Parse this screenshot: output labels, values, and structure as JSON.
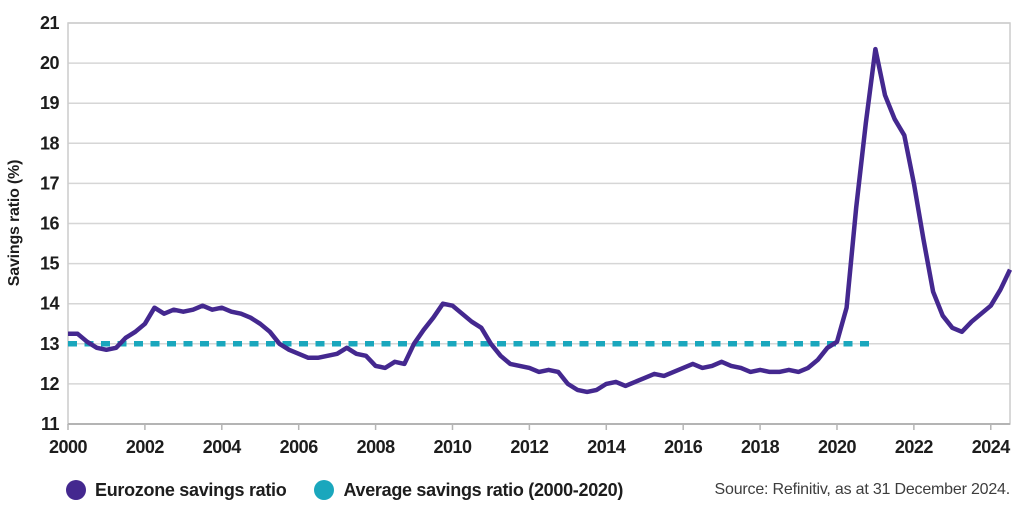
{
  "chart_data": {
    "type": "line",
    "title": "",
    "xlabel": "",
    "ylabel": "Savings ratio (%)",
    "ylim": [
      11,
      21
    ],
    "xlim": [
      2000,
      2024.5
    ],
    "y_ticks": [
      11,
      12,
      13,
      14,
      15,
      16,
      17,
      18,
      19,
      20,
      21
    ],
    "x_ticks": [
      2000,
      2002,
      2004,
      2006,
      2008,
      2010,
      2012,
      2014,
      2016,
      2018,
      2020,
      2022,
      2024
    ],
    "grid": "horizontal",
    "legend_position": "bottom-left",
    "series": [
      {
        "name": "Eurozone savings ratio",
        "color": "#44288f",
        "style": "solid",
        "x": [
          2000.0,
          2000.25,
          2000.5,
          2000.75,
          2001.0,
          2001.25,
          2001.5,
          2001.75,
          2002.0,
          2002.25,
          2002.5,
          2002.75,
          2003.0,
          2003.25,
          2003.5,
          2003.75,
          2004.0,
          2004.25,
          2004.5,
          2004.75,
          2005.0,
          2005.25,
          2005.5,
          2005.75,
          2006.0,
          2006.25,
          2006.5,
          2006.75,
          2007.0,
          2007.25,
          2007.5,
          2007.75,
          2008.0,
          2008.25,
          2008.5,
          2008.75,
          2009.0,
          2009.25,
          2009.5,
          2009.75,
          2010.0,
          2010.25,
          2010.5,
          2010.75,
          2011.0,
          2011.25,
          2011.5,
          2011.75,
          2012.0,
          2012.25,
          2012.5,
          2012.75,
          2013.0,
          2013.25,
          2013.5,
          2013.75,
          2014.0,
          2014.25,
          2014.5,
          2014.75,
          2015.0,
          2015.25,
          2015.5,
          2015.75,
          2016.0,
          2016.25,
          2016.5,
          2016.75,
          2017.0,
          2017.25,
          2017.5,
          2017.75,
          2018.0,
          2018.25,
          2018.5,
          2018.75,
          2019.0,
          2019.25,
          2019.5,
          2019.75,
          2020.0,
          2020.25,
          2020.5,
          2020.75,
          2021.0,
          2021.25,
          2021.5,
          2021.75,
          2022.0,
          2022.25,
          2022.5,
          2022.75,
          2023.0,
          2023.25,
          2023.5,
          2023.75,
          2024.0,
          2024.25,
          2024.5
        ],
        "values": [
          13.25,
          13.25,
          13.05,
          12.9,
          12.85,
          12.9,
          13.15,
          13.3,
          13.5,
          13.9,
          13.75,
          13.85,
          13.8,
          13.85,
          13.95,
          13.85,
          13.9,
          13.8,
          13.75,
          13.65,
          13.5,
          13.3,
          13.0,
          12.85,
          12.75,
          12.65,
          12.65,
          12.7,
          12.75,
          12.9,
          12.75,
          12.7,
          12.45,
          12.4,
          12.55,
          12.5,
          13.0,
          13.35,
          13.65,
          14.0,
          13.95,
          13.75,
          13.55,
          13.4,
          13.0,
          12.7,
          12.5,
          12.45,
          12.4,
          12.3,
          12.35,
          12.3,
          12.0,
          11.85,
          11.8,
          11.85,
          12.0,
          12.05,
          11.95,
          12.05,
          12.15,
          12.25,
          12.2,
          12.3,
          12.4,
          12.5,
          12.4,
          12.45,
          12.55,
          12.45,
          12.4,
          12.3,
          12.35,
          12.3,
          12.3,
          12.35,
          12.3,
          12.4,
          12.6,
          12.9,
          13.05,
          13.9,
          16.4,
          18.5,
          20.35,
          19.2,
          18.6,
          18.2,
          17.0,
          15.6,
          14.3,
          13.7,
          13.4,
          13.3,
          13.55,
          13.75,
          13.95,
          14.35,
          14.85
        ]
      },
      {
        "name": "Average savings ratio (2000-2020)",
        "color": "#1aa7bd",
        "style": "dashed",
        "x": [
          2000,
          2021
        ],
        "values": [
          13.0,
          13.0
        ]
      }
    ]
  },
  "legend": {
    "items": [
      {
        "label": "Eurozone savings ratio",
        "color": "#44288f"
      },
      {
        "label": "Average savings ratio (2000-2020)",
        "color": "#1aa7bd"
      }
    ]
  },
  "source_note": "Source: Refinitiv, as at 31 December 2024.",
  "colors": {
    "eurozone_line": "#44288f",
    "average_line": "#1aa7bd",
    "gridline": "#d6d6d6",
    "plot_border": "#cccccc",
    "axis_line": "#a8a8a8",
    "tick_mark": "#b5b5b5",
    "tick_text": "#1d1d1d",
    "background": "#ffffff"
  }
}
